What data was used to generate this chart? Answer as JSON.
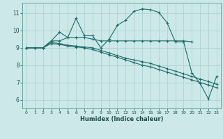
{
  "title": "",
  "xlabel": "Humidex (Indice chaleur)",
  "bg_color": "#cce8e8",
  "grid_color": "#aacfcf",
  "line_color": "#1e6b6b",
  "xlim": [
    -0.5,
    23.5
  ],
  "ylim": [
    5.5,
    11.6
  ],
  "xticks": [
    0,
    1,
    2,
    3,
    4,
    5,
    6,
    7,
    8,
    9,
    10,
    11,
    12,
    13,
    14,
    15,
    16,
    17,
    18,
    19,
    20,
    21,
    22,
    23
  ],
  "yticks": [
    6,
    7,
    8,
    9,
    10,
    11
  ],
  "line1_x": [
    0,
    1,
    2,
    3,
    4,
    5,
    6,
    7,
    8,
    9,
    10,
    11,
    12,
    13,
    14,
    15,
    16,
    17,
    18,
    19,
    20,
    21,
    22,
    23
  ],
  "line1_y": [
    9.0,
    9.0,
    9.0,
    9.4,
    9.4,
    9.6,
    10.7,
    9.7,
    9.7,
    9.0,
    9.5,
    10.3,
    10.6,
    11.1,
    11.25,
    11.2,
    11.05,
    10.45,
    9.35,
    9.35,
    7.55,
    6.95,
    6.05,
    7.35
  ],
  "line2_x": [
    0,
    1,
    2,
    3,
    4,
    5,
    6,
    7,
    8,
    9,
    10,
    11,
    12,
    13,
    14,
    15,
    16,
    17,
    18,
    19,
    20
  ],
  "line2_y": [
    9.0,
    9.0,
    9.0,
    9.4,
    9.9,
    9.6,
    9.6,
    9.6,
    9.5,
    9.4,
    9.4,
    9.4,
    9.4,
    9.4,
    9.4,
    9.4,
    9.4,
    9.4,
    9.4,
    9.4,
    9.35
  ],
  "line3_x": [
    0,
    1,
    2,
    3,
    4,
    5,
    6,
    7,
    8,
    9,
    10,
    11,
    12,
    13,
    14,
    15,
    16,
    17,
    18,
    19,
    20,
    21,
    22,
    23
  ],
  "line3_y": [
    9.0,
    9.0,
    9.0,
    9.3,
    9.25,
    9.15,
    9.1,
    9.05,
    9.0,
    8.85,
    8.7,
    8.55,
    8.4,
    8.3,
    8.2,
    8.1,
    7.95,
    7.8,
    7.65,
    7.5,
    7.35,
    7.2,
    7.05,
    6.9
  ],
  "line4_x": [
    0,
    1,
    2,
    3,
    4,
    5,
    6,
    7,
    8,
    9,
    10,
    11,
    12,
    13,
    14,
    15,
    16,
    17,
    18,
    19,
    20,
    21,
    22,
    23
  ],
  "line4_y": [
    9.0,
    9.0,
    9.0,
    9.25,
    9.2,
    9.1,
    9.05,
    9.0,
    8.9,
    8.75,
    8.6,
    8.45,
    8.3,
    8.15,
    8.0,
    7.9,
    7.75,
    7.6,
    7.45,
    7.3,
    7.15,
    7.0,
    6.85,
    6.7
  ]
}
